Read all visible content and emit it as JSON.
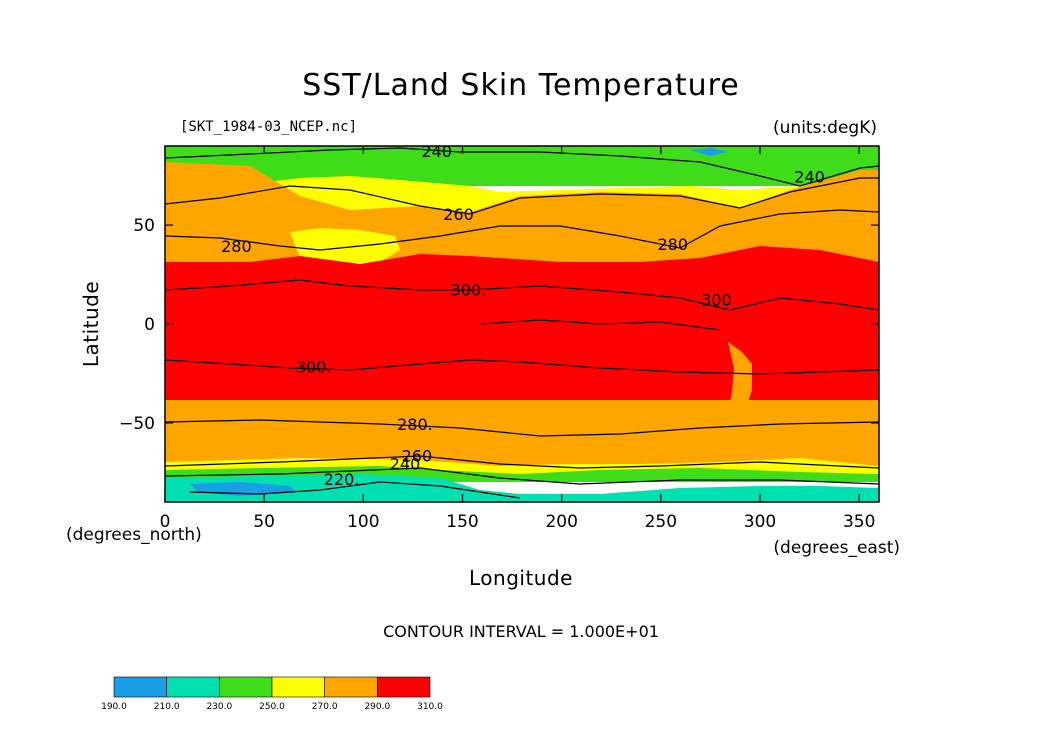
{
  "chart_data": {
    "type": "heatmap",
    "title": "SST/Land Skin Temperature",
    "subtitle_left": "[SKT_1984-03_NCEP.nc]",
    "subtitle_right": "(units:degK)",
    "xlabel": "Longitude",
    "ylabel": "Latitude",
    "x_unit_label": "(degrees_east)",
    "y_unit_label": "(degrees_north)",
    "xlim": [
      0,
      360
    ],
    "ylim": [
      -90,
      90
    ],
    "xticks": [
      "0",
      "50",
      "100",
      "150",
      "200",
      "250",
      "300",
      "350"
    ],
    "xtick_values": [
      0,
      50,
      100,
      150,
      200,
      250,
      300,
      350
    ],
    "yticks": [
      "50",
      "0",
      "−50"
    ],
    "ytick_values": [
      50,
      0,
      -50
    ],
    "contour_interval_text": "CONTOUR INTERVAL = 1.000E+01",
    "contour_labels": [
      {
        "text": "240",
        "lon": 137,
        "lat": 87
      },
      {
        "text": "240",
        "lon": 325,
        "lat": 74
      },
      {
        "text": "260",
        "lon": 148,
        "lat": 55
      },
      {
        "text": "280",
        "lon": 36,
        "lat": 39
      },
      {
        "text": "280",
        "lon": 256,
        "lat": 40
      },
      {
        "text": "300.",
        "lon": 153,
        "lat": 17
      },
      {
        "text": "300",
        "lon": 278,
        "lat": 12
      },
      {
        "text": "300.",
        "lon": 75,
        "lat": -22
      },
      {
        "text": "280.",
        "lon": 126,
        "lat": -51
      },
      {
        "text": "260",
        "lon": 127,
        "lat": -67
      },
      {
        "text": "240",
        "lon": 121,
        "lat": -71
      },
      {
        "text": "220.",
        "lon": 89,
        "lat": -79
      }
    ],
    "colorbar": {
      "levels": [
        "190.0",
        "210.0",
        "230.0",
        "250.0",
        "270.0",
        "290.0",
        "310.0"
      ],
      "colors": [
        "#1a9ee6",
        "#00e0b0",
        "#3fdc1a",
        "#ffff00",
        "#ffa500",
        "#ff0000"
      ]
    },
    "bands": [
      {
        "value_range": [
          190,
          210
        ],
        "color": "#1a9ee6"
      },
      {
        "value_range": [
          210,
          230
        ],
        "color": "#00e0b0"
      },
      {
        "value_range": [
          230,
          250
        ],
        "color": "#3fdc1a"
      },
      {
        "value_range": [
          250,
          270
        ],
        "color": "#ffff00"
      },
      {
        "value_range": [
          270,
          290
        ],
        "color": "#ffa500"
      },
      {
        "value_range": [
          290,
          310
        ],
        "color": "#ff0000"
      }
    ]
  }
}
